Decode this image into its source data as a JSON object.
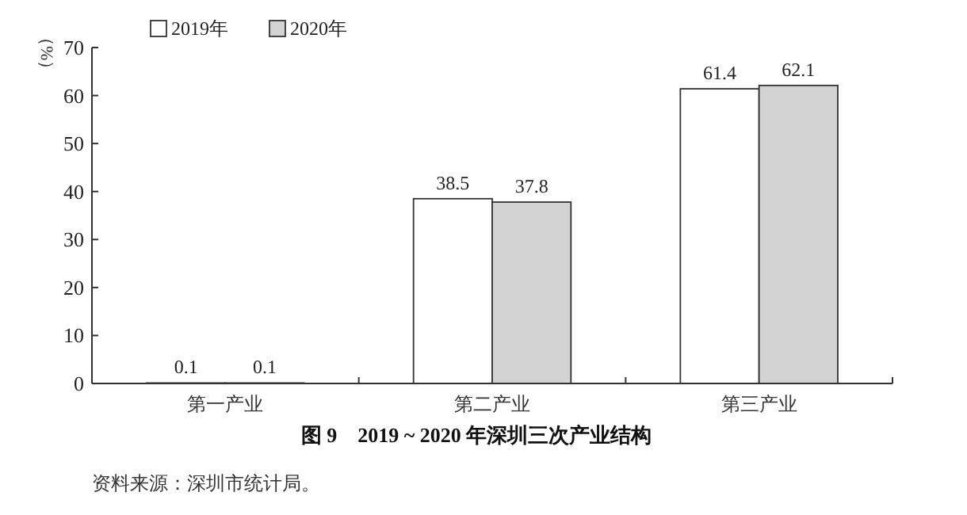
{
  "chart_data": {
    "type": "bar",
    "title": "图 9　2019 ~ 2020 年深圳三次产业结构",
    "ylabel": "（%）",
    "annotations": [
      "资料来源：深圳市统计局。"
    ],
    "categories": [
      "第一产业",
      "第二产业",
      "第三产业"
    ],
    "series": [
      {
        "name": "2019年",
        "color": "#ffffff",
        "values": [
          0.1,
          38.5,
          61.4
        ]
      },
      {
        "name": "2020年",
        "color": "#d3d3d3",
        "values": [
          0.1,
          37.8,
          62.1
        ]
      }
    ],
    "ylim": [
      0,
      70
    ],
    "yticks": [
      0,
      10,
      20,
      30,
      40,
      50,
      60,
      70
    ],
    "data_labels": true,
    "legend": "top left",
    "grid": false
  }
}
